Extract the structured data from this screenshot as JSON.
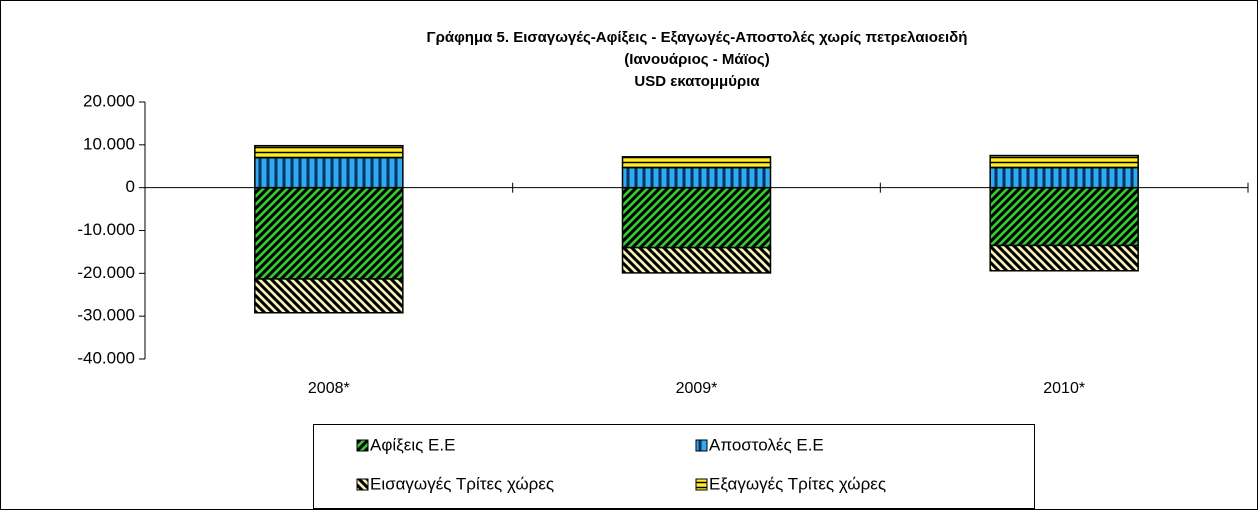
{
  "chart_data": {
    "type": "stacked_bar",
    "title": [
      "Γράφημα 5. Εισαγωγές-Αφίξεις - Εξαγωγές-Αποστολές χωρίς πετρελαιοειδή",
      "(Ιανουάριος - Μάϊος)",
      "USD εκατομμύρια"
    ],
    "categories": [
      "2008*",
      "2009*",
      "2010*"
    ],
    "series": [
      {
        "name": "Αφίξεις Ε.Ε",
        "color": "#33cc33",
        "values": [
          -21300,
          -14000,
          -13500
        ]
      },
      {
        "name": "Αποστολές  Ε.Ε",
        "color": "#33aaee",
        "values": [
          7000,
          4700,
          4700
        ]
      },
      {
        "name": "Εισαγωγές Τρίτες χώρες",
        "color": "#f5f0b8",
        "values": [
          -7900,
          -5900,
          -5900
        ]
      },
      {
        "name": "Εξαγωγές Τρίτες χώρες",
        "color": "#ffee22",
        "values": [
          2800,
          2500,
          2800
        ]
      }
    ],
    "ylim": [
      -40000,
      20000
    ],
    "yticks": [
      {
        "value": 20000,
        "label": "20.000"
      },
      {
        "value": 10000,
        "label": "10.000"
      },
      0,
      {
        "value": -10000,
        "label": "-10.000"
      },
      {
        "value": -20000,
        "label": "-20.000"
      },
      {
        "value": -30000,
        "label": "-30.000"
      },
      {
        "value": -40000,
        "label": "-40.000"
      }
    ]
  }
}
